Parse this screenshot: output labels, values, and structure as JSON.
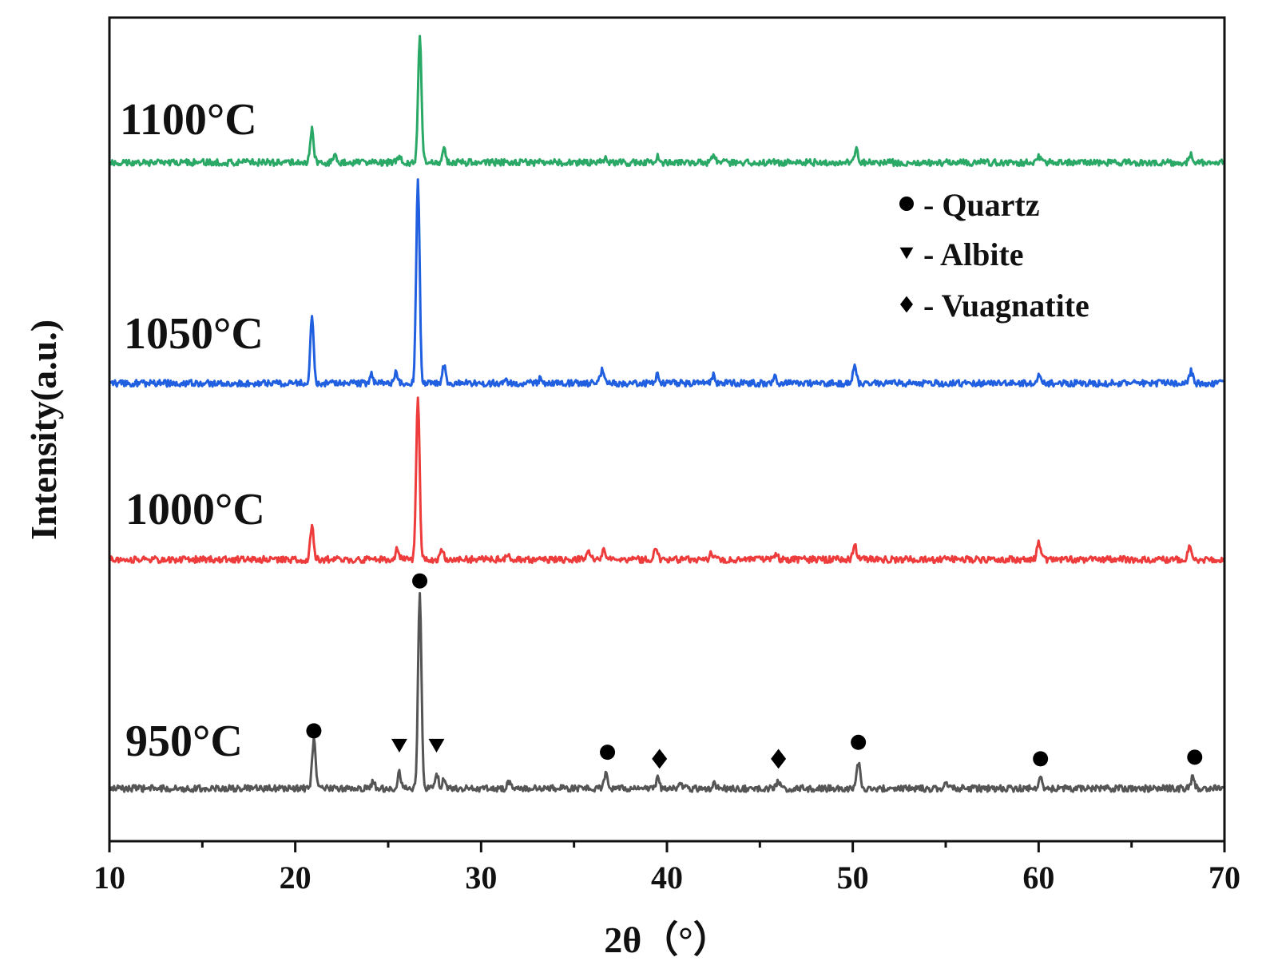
{
  "chart_data": {
    "type": "line",
    "xlabel": "2θ（°）",
    "ylabel": "Intensity(a.u.)",
    "xlim": [
      10,
      70
    ],
    "ylim": [
      0,
      1
    ],
    "x_ticks": [
      10,
      20,
      30,
      40,
      50,
      60,
      70
    ],
    "y_ticks_shown": false,
    "grid": false,
    "colors": {
      "950": "#555555",
      "1000": "#ee3b3b",
      "1050": "#1f5fe0",
      "1100": "#2aa866",
      "markers": "#000000"
    },
    "series": [
      {
        "name": "950°C",
        "color": "#555555",
        "baseline": 0.064,
        "peaks": [
          [
            21.0,
            0.06
          ],
          [
            24.2,
            0.008
          ],
          [
            25.6,
            0.02
          ],
          [
            26.7,
            0.24
          ],
          [
            27.6,
            0.02
          ],
          [
            28.0,
            0.01
          ],
          [
            31.5,
            0.007
          ],
          [
            36.7,
            0.018
          ],
          [
            39.5,
            0.012
          ],
          [
            40.7,
            0.005
          ],
          [
            42.5,
            0.006
          ],
          [
            46.0,
            0.009
          ],
          [
            50.3,
            0.032
          ],
          [
            55.0,
            0.006
          ],
          [
            60.1,
            0.013
          ],
          [
            68.3,
            0.016
          ]
        ]
      },
      {
        "name": "1000°C",
        "color": "#ee3b3b",
        "baseline": 0.342,
        "peaks": [
          [
            20.9,
            0.04
          ],
          [
            25.5,
            0.013
          ],
          [
            26.6,
            0.2
          ],
          [
            27.9,
            0.012
          ],
          [
            31.4,
            0.006
          ],
          [
            35.8,
            0.008
          ],
          [
            36.6,
            0.012
          ],
          [
            39.4,
            0.016
          ],
          [
            42.4,
            0.008
          ],
          [
            45.9,
            0.006
          ],
          [
            50.1,
            0.02
          ],
          [
            60.0,
            0.022
          ],
          [
            68.1,
            0.015
          ]
        ]
      },
      {
        "name": "1050°C",
        "color": "#1f5fe0",
        "baseline": 0.556,
        "peaks": [
          [
            20.9,
            0.08
          ],
          [
            24.1,
            0.01
          ],
          [
            25.4,
            0.012
          ],
          [
            26.6,
            0.25
          ],
          [
            28.0,
            0.022
          ],
          [
            31.3,
            0.007
          ],
          [
            33.2,
            0.006
          ],
          [
            36.5,
            0.015
          ],
          [
            39.5,
            0.012
          ],
          [
            42.5,
            0.01
          ],
          [
            45.8,
            0.008
          ],
          [
            50.1,
            0.02
          ],
          [
            60.0,
            0.01
          ],
          [
            68.2,
            0.015
          ]
        ]
      },
      {
        "name": "1100°C",
        "color": "#2aa866",
        "baseline": 0.824,
        "peaks": [
          [
            20.9,
            0.042
          ],
          [
            22.1,
            0.008
          ],
          [
            25.6,
            0.008
          ],
          [
            26.7,
            0.156
          ],
          [
            28.0,
            0.02
          ],
          [
            36.7,
            0.007
          ],
          [
            39.5,
            0.007
          ],
          [
            42.5,
            0.01
          ],
          [
            50.2,
            0.016
          ],
          [
            60.0,
            0.008
          ],
          [
            68.2,
            0.01
          ]
        ]
      }
    ],
    "phase_markers": [
      {
        "phase": "Quartz",
        "symbol": "circle",
        "x": 21.0,
        "y": 0.134
      },
      {
        "phase": "Quartz",
        "symbol": "circle",
        "x": 26.7,
        "y": 0.316
      },
      {
        "phase": "Albite",
        "symbol": "triangle-down",
        "x": 25.6,
        "y": 0.116
      },
      {
        "phase": "Albite",
        "symbol": "triangle-down",
        "x": 27.6,
        "y": 0.116
      },
      {
        "phase": "Quartz",
        "symbol": "circle",
        "x": 36.8,
        "y": 0.108
      },
      {
        "phase": "Vuagnatite",
        "symbol": "diamond",
        "x": 39.6,
        "y": 0.1
      },
      {
        "phase": "Vuagnatite",
        "symbol": "diamond",
        "x": 46.0,
        "y": 0.1
      },
      {
        "phase": "Quartz",
        "symbol": "circle",
        "x": 50.3,
        "y": 0.12
      },
      {
        "phase": "Quartz",
        "symbol": "circle",
        "x": 60.1,
        "y": 0.1
      },
      {
        "phase": "Quartz",
        "symbol": "circle",
        "x": 68.4,
        "y": 0.102
      }
    ],
    "legend": {
      "placement": "upper-right",
      "entries": [
        {
          "symbol": "circle",
          "label": "- Quartz"
        },
        {
          "symbol": "triangle-down",
          "label": "- Albite"
        },
        {
          "symbol": "diamond",
          "label": "- Vuagnatite"
        }
      ]
    }
  }
}
